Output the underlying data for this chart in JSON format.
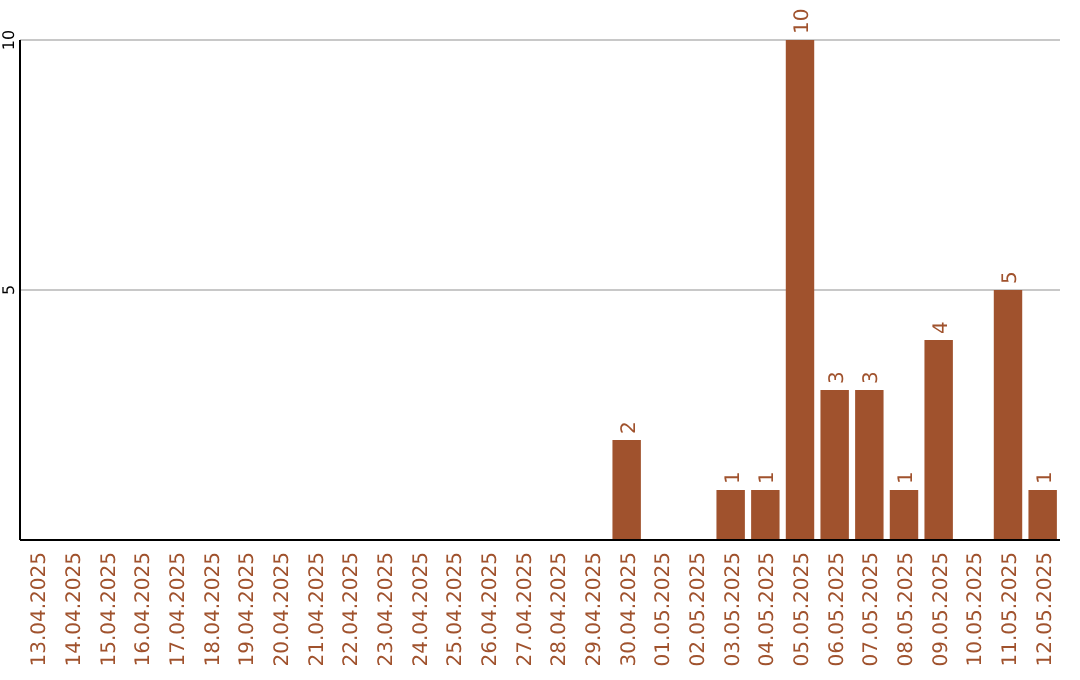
{
  "chart_data": {
    "type": "bar",
    "categories": [
      "13.04.2025",
      "14.04.2025",
      "15.04.2025",
      "16.04.2025",
      "17.04.2025",
      "18.04.2025",
      "19.04.2025",
      "20.04.2025",
      "21.04.2025",
      "22.04.2025",
      "23.04.2025",
      "24.04.2025",
      "25.04.2025",
      "26.04.2025",
      "27.04.2025",
      "28.04.2025",
      "29.04.2025",
      "30.04.2025",
      "01.05.2025",
      "02.05.2025",
      "03.05.2025",
      "04.05.2025",
      "05.05.2025",
      "06.05.2025",
      "07.05.2025",
      "08.05.2025",
      "09.05.2025",
      "10.05.2025",
      "11.05.2025",
      "12.05.2025"
    ],
    "values": [
      0,
      0,
      0,
      0,
      0,
      0,
      0,
      0,
      0,
      0,
      0,
      0,
      0,
      0,
      0,
      0,
      0,
      2,
      0,
      0,
      1,
      1,
      10,
      3,
      3,
      1,
      4,
      0,
      5,
      1
    ],
    "value_labels": [
      null,
      null,
      null,
      null,
      null,
      null,
      null,
      null,
      null,
      null,
      null,
      null,
      null,
      null,
      null,
      null,
      null,
      "2",
      null,
      null,
      "1",
      "1",
      "10",
      "3",
      "3",
      "1",
      "4",
      null,
      "5",
      "1"
    ],
    "color": "#a0522d",
    "ylim": [
      0,
      10
    ],
    "yticks": [
      5,
      10
    ],
    "grid": "y"
  }
}
